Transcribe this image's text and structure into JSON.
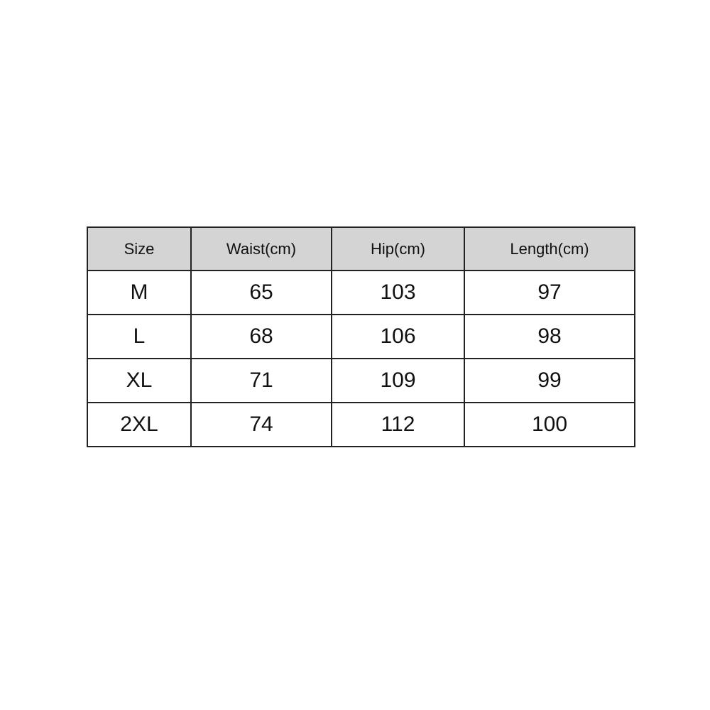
{
  "size_chart": {
    "headers": [
      "Size",
      "Waist(cm)",
      "Hip(cm)",
      "Length(cm)"
    ],
    "rows": [
      [
        "M",
        "65",
        "103",
        "97"
      ],
      [
        "L",
        "68",
        "106",
        "98"
      ],
      [
        "XL",
        "71",
        "109",
        "99"
      ],
      [
        "2XL",
        "74",
        "112",
        "100"
      ]
    ],
    "header_bg": "#d4d4d4"
  }
}
